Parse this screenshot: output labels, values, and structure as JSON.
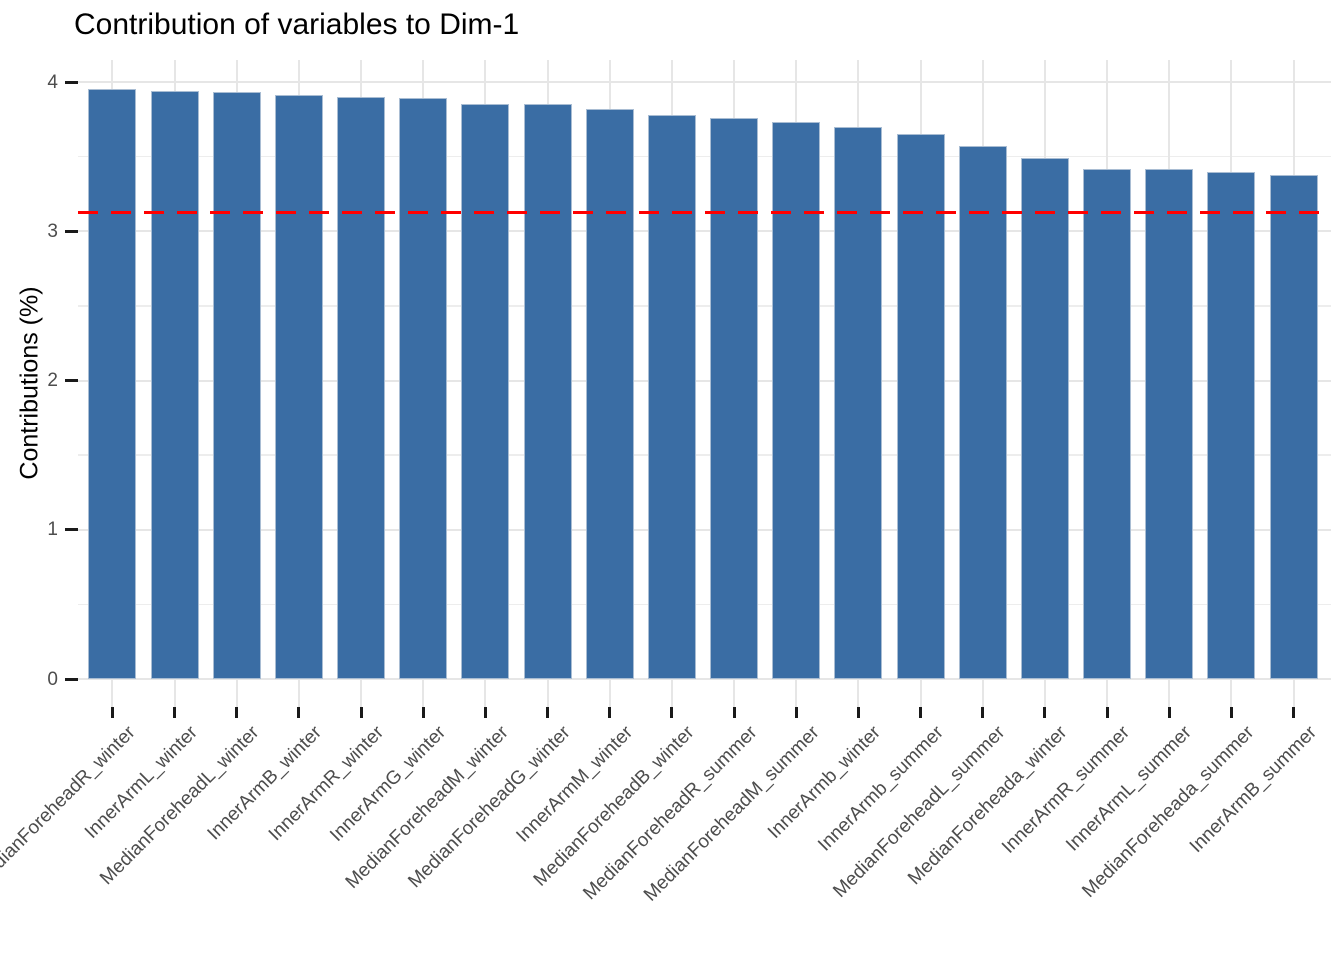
{
  "chart_data": {
    "type": "bar",
    "title": "Contribution of variables to Dim-1",
    "xlabel": "",
    "ylabel": "Contributions (%)",
    "categories": [
      "MedianForeheadR_winter",
      "InnerArmL_winter",
      "MedianForeheadL_winter",
      "InnerArmB_winter",
      "InnerArmR_winter",
      "InnerArmG_winter",
      "MedianForeheadM_winter",
      "MedianForeheadG_winter",
      "InnerArmM_winter",
      "MedianForeheadB_winter",
      "MedianForeheadR_summer",
      "MedianForeheadM_summer",
      "InnerArmb_winter",
      "InnerArmb_summer",
      "MedianForeheadL_summer",
      "MedianForeheada_winter",
      "InnerArmR_summer",
      "InnerArmL_summer",
      "MedianForeheada_summer",
      "InnerArmB_summer"
    ],
    "values": [
      3.95,
      3.94,
      3.93,
      3.91,
      3.9,
      3.89,
      3.85,
      3.85,
      3.82,
      3.78,
      3.76,
      3.73,
      3.7,
      3.65,
      3.57,
      3.49,
      3.42,
      3.42,
      3.4,
      3.38
    ],
    "yticks": [
      0,
      1,
      2,
      3,
      4
    ],
    "ylim": [
      0,
      4.15
    ],
    "grid": true,
    "legend": "none",
    "bar_color": "#3a6da4",
    "bar_border_color": "#a9bdd3",
    "reference_line": {
      "value": 3.125,
      "color": "#ff0000",
      "style": "dashed"
    }
  }
}
